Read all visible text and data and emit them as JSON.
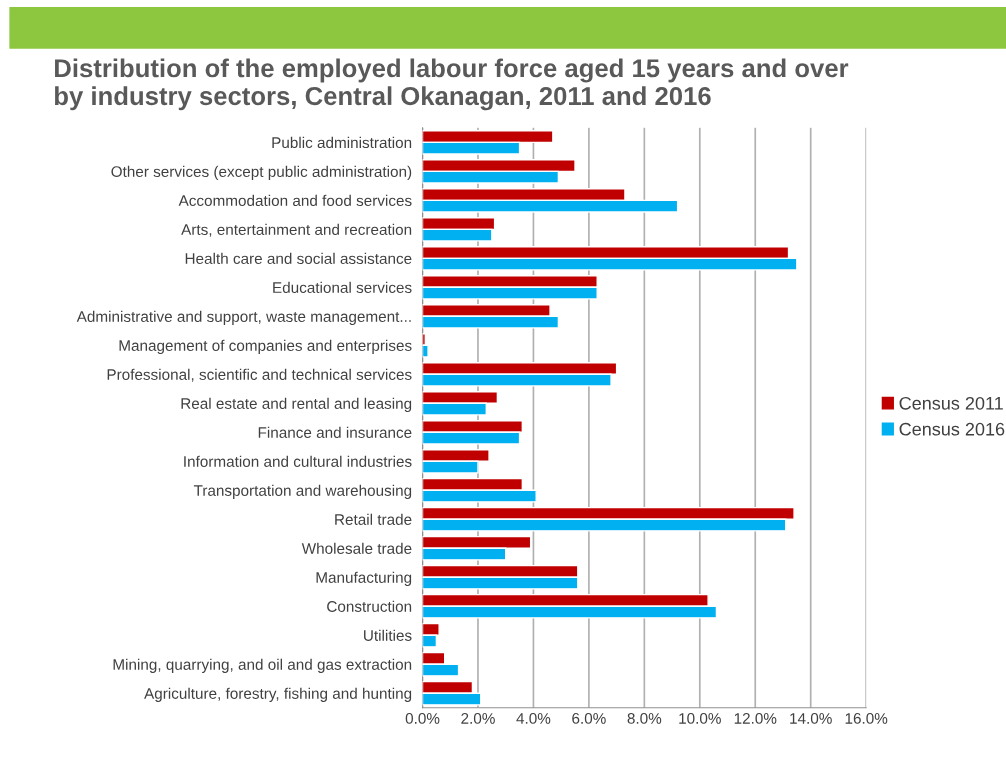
{
  "chart_data": {
    "type": "bar",
    "orientation": "horizontal",
    "title": "Distribution of the employed labour force aged 15 years and over\nby industry sectors, Central Okanagan, 2011 and 2016",
    "categories": [
      "Public administration",
      "Other services (except public administration)",
      "Accommodation and food services",
      "Arts, entertainment and recreation",
      "Health care and social assistance",
      "Educational services",
      "Administrative and support, waste management...",
      "Management of companies and enterprises",
      "Professional, scientific and technical services",
      "Real estate and rental and leasing",
      "Finance and insurance",
      "Information and cultural industries",
      "Transportation and warehousing",
      "Retail trade",
      "Wholesale trade",
      "Manufacturing",
      "Construction",
      "Utilities",
      "Mining, quarrying, and oil and gas extraction",
      "Agriculture, forestry, fishing and hunting"
    ],
    "series": [
      {
        "name": "Census 2011",
        "color": "#c00000",
        "values": [
          4.7,
          5.5,
          7.3,
          2.6,
          13.2,
          6.3,
          4.6,
          0.1,
          7.0,
          2.7,
          3.6,
          2.4,
          3.6,
          13.4,
          3.9,
          5.6,
          10.3,
          0.6,
          0.8,
          1.8
        ]
      },
      {
        "name": "Census 2016",
        "color": "#00b0f0",
        "values": [
          3.5,
          4.9,
          9.2,
          2.5,
          13.5,
          6.3,
          4.9,
          0.2,
          6.8,
          2.3,
          3.5,
          2.0,
          4.1,
          13.1,
          3.0,
          5.6,
          10.6,
          0.5,
          1.3,
          2.1
        ]
      }
    ],
    "xlim": [
      0,
      16
    ],
    "xticks": [
      {
        "value": 0,
        "label": "0.0%"
      },
      {
        "value": 2,
        "label": "2.0%"
      },
      {
        "value": 4,
        "label": "4.0%"
      },
      {
        "value": 6,
        "label": "6.0%"
      },
      {
        "value": 8,
        "label": "8.0%"
      },
      {
        "value": 10,
        "label": "10.0%"
      },
      {
        "value": 12,
        "label": "12.0%"
      },
      {
        "value": 14,
        "label": "14.0%"
      },
      {
        "value": 16,
        "label": "16.0%"
      }
    ],
    "grid": "x",
    "legend": "right"
  }
}
